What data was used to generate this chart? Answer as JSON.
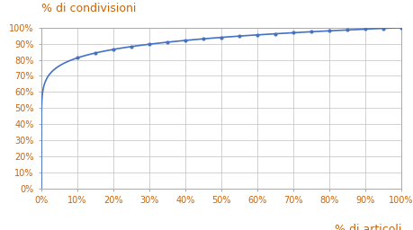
{
  "title_y": "% di condivisioni",
  "title_x": "% di articoli",
  "line_color": "#4472C4",
  "background_color": "#FFFFFF",
  "grid_color": "#C0C0C0",
  "axis_label_color": "#C8640A",
  "xlim": [
    0,
    1
  ],
  "ylim": [
    0,
    1
  ],
  "xticks": [
    0,
    0.1,
    0.2,
    0.3,
    0.4,
    0.5,
    0.6,
    0.7,
    0.8,
    0.9,
    1.0
  ],
  "yticks": [
    0,
    0.1,
    0.2,
    0.3,
    0.4,
    0.5,
    0.6,
    0.7,
    0.8,
    0.9,
    1.0
  ],
  "xticklabels": [
    "0%",
    "10%",
    "20%",
    "30%",
    "40%",
    "50%",
    "60%",
    "70%",
    "80%",
    "90%",
    "100%"
  ],
  "yticklabels": [
    "0%",
    "10%",
    "20%",
    "30%",
    "40%",
    "50%",
    "60%",
    "70%",
    "80%",
    "90%",
    "100%"
  ],
  "curve_exponent": 0.18,
  "figsize": [
    4.6,
    2.56
  ],
  "dpi": 100,
  "tick_fontsize": 7.0,
  "label_fontsize": 9.0
}
